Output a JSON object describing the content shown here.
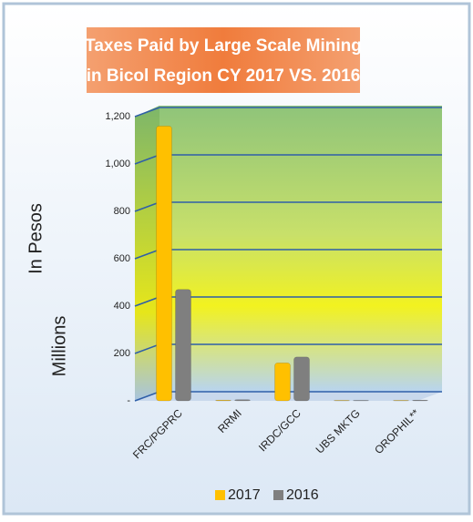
{
  "chart_data": {
    "type": "bar",
    "title": [
      "Taxes Paid by Large Scale Mining",
      "in Bicol Region CY 2017 VS. 2016"
    ],
    "ylabel": [
      "Millions",
      "In Pesos"
    ],
    "categories": [
      "FRC/PGPRC",
      "RRMI",
      "IRDC/GCC",
      "UBS MKTG",
      "OROPHIL**"
    ],
    "series": [
      {
        "name": "2017",
        "color": "#ffc000",
        "values": [
          1160,
          3,
          160,
          2,
          2
        ]
      },
      {
        "name": "2016",
        "color": "#7f7f7f",
        "values": [
          470,
          5,
          185,
          2,
          3
        ]
      }
    ],
    "ylim": [
      0,
      1200
    ],
    "yticks": [
      {
        "value": 0,
        "label": "-"
      },
      200,
      400,
      600,
      800,
      {
        "value": 1000,
        "label": "1,000"
      },
      {
        "value": 1200,
        "label": "1,200"
      }
    ],
    "grid": true,
    "legend": "bottom"
  }
}
